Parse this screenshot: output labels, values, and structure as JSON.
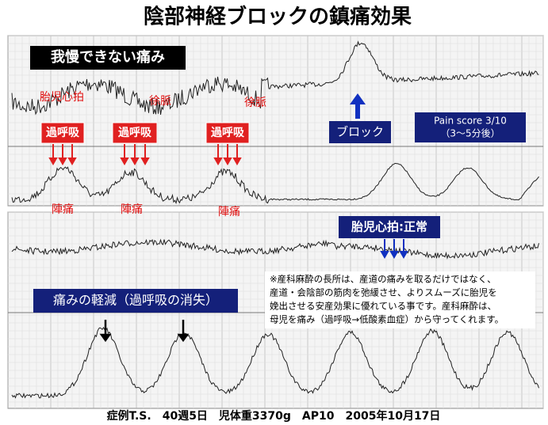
{
  "title": "陰部神経ブロックの鎮痛効果",
  "labels": {
    "unbearable_pain": "我慢できない痛み",
    "fetal_heart_rate": "胎児心拍",
    "bradycardia": [
      "徐脈",
      "徐脈"
    ],
    "hyperventilation": [
      "過呼吸",
      "過呼吸",
      "過呼吸"
    ],
    "block": "ブロック",
    "pain_score": [
      "Pain score 3/10",
      "（3～5分後）"
    ],
    "contractions": [
      "陣痛",
      "陣痛",
      "陣痛"
    ],
    "fhr_normal": "胎児心拍:正常",
    "pain_relief": "痛みの軽減（過呼吸の消失）"
  },
  "note": [
    "※産科麻酔の長所は、産道の痛みを取るだけではなく、",
    "産道・会陰部の筋肉を弛緩させ、よりスムーズに胎児を",
    "娩出させる安産効果に優れている事です。産科麻酔は、",
    "母児を痛み（過呼吸→低酸素血症）から守ってくれます。"
  ],
  "footer": "症例T.S.　40週5日　児体重3370g　AP10　2005年10月17日"
}
